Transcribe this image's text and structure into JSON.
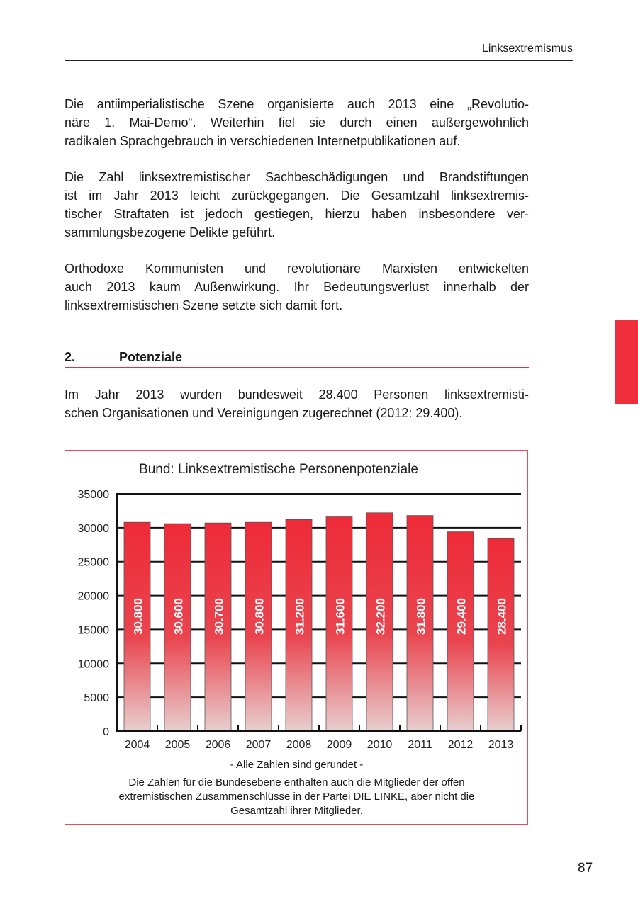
{
  "header": {
    "running_title": "Linksextremismus"
  },
  "paragraphs": [
    {
      "lines": [
        "Die antiimperialistische Szene organisierte auch 2013 eine „Revolutio-",
        "näre 1. Mai-Demo“. Weiterhin fiel sie durch einen außergewöhnlich",
        "radikalen Sprachgebrauch in verschiedenen Internetpublikationen auf."
      ]
    },
    {
      "lines": [
        "Die Zahl linksextremistischer Sachbeschädigungen und Brandstiftungen",
        "ist im Jahr 2013 leicht zurückgegangen. Die Gesamtzahl linksextremis-",
        "tischer Straftaten ist jedoch gestiegen, hierzu haben insbesondere ver-",
        "sammlungsbezogene Delikte geführt."
      ]
    },
    {
      "lines": [
        "Orthodoxe Kommunisten und revolutionäre Marxisten entwickelten",
        "auch 2013 kaum Außenwirkung. Ihr Bedeutungsverlust innerhalb der",
        "linksextremistischen Szene setzte sich damit fort."
      ]
    }
  ],
  "section": {
    "number": "2.",
    "title": "Potenziale"
  },
  "section_paragraph": {
    "lines": [
      "Im Jahr 2013 wurden bundesweit 28.400 Personen linksextremisti-",
      "schen Organisationen und Vereinigungen zugerechnet (2012: 29.400)."
    ]
  },
  "chart_data": {
    "type": "bar",
    "title": "Bund: Linksextremistische Personenpotenziale",
    "categories": [
      "2004",
      "2005",
      "2006",
      "2007",
      "2008",
      "2009",
      "2010",
      "2011",
      "2012",
      "2013"
    ],
    "values": [
      30800,
      30600,
      30700,
      30800,
      31200,
      31600,
      32200,
      31800,
      29400,
      28400
    ],
    "data_labels": [
      "30.800",
      "30.600",
      "30.700",
      "30.800",
      "31.200",
      "31.600",
      "32.200",
      "31.800",
      "29.400",
      "28.400"
    ],
    "ylim": [
      0,
      35000
    ],
    "yticks": [
      0,
      5000,
      10000,
      15000,
      20000,
      25000,
      30000,
      35000
    ],
    "grid": true,
    "colors": {
      "bar_top": "#ee2a38",
      "bar_bottom": "#e8cfcf",
      "border": "#e0505a"
    }
  },
  "notes": {
    "rounded": "- Alle Zahlen sind gerundet -",
    "lines": [
      "Die Zahlen für die Bundesebene enthalten auch die Mitglieder der offen",
      "extremistischen Zusammenschlüsse in der Partei DIE LINKE, aber nicht die",
      "Gesamtzahl ihrer Mitglieder."
    ]
  },
  "footer": {
    "page_number": "87"
  }
}
